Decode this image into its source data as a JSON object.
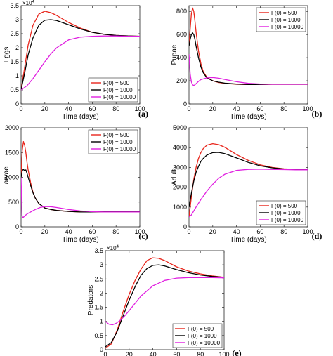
{
  "chart_data": [
    {
      "id": "a",
      "type": "line",
      "panel_label": "(a)",
      "xlabel": "Time (days)",
      "ylabel": "Eggs",
      "multiplier": "×10",
      "multiplier_exp": "4",
      "xlim": [
        0,
        100
      ],
      "ylim": [
        0,
        35000
      ],
      "xticks": [
        0,
        20,
        40,
        60,
        80,
        100
      ],
      "yticks": [
        0,
        5000,
        10000,
        15000,
        20000,
        25000,
        30000,
        35000
      ],
      "ytick_labels": [
        "0",
        "0.5",
        "1",
        "1.5",
        "2",
        "2.5",
        "3",
        "3.5"
      ],
      "legend_position": "bottom-right",
      "series": [
        {
          "name": "F(0) = 500",
          "color": "#e8251b",
          "x": [
            0,
            3,
            6,
            10,
            15,
            20,
            25,
            30,
            40,
            50,
            60,
            70,
            80,
            90,
            100
          ],
          "y": [
            5000,
            13000,
            21000,
            28000,
            32000,
            33000,
            32500,
            31500,
            29000,
            27000,
            25500,
            24800,
            24400,
            24200,
            24100
          ]
        },
        {
          "name": "F(0) = 1000",
          "color": "#000000",
          "x": [
            0,
            3,
            6,
            10,
            15,
            20,
            25,
            30,
            40,
            50,
            60,
            70,
            80,
            90,
            100
          ],
          "y": [
            5000,
            11000,
            17500,
            23500,
            28000,
            29800,
            30000,
            29700,
            28200,
            26700,
            25500,
            24800,
            24400,
            24200,
            24100
          ]
        },
        {
          "name": "F(0) = 10000",
          "color": "#e020e0",
          "x": [
            0,
            5,
            10,
            15,
            20,
            25,
            30,
            40,
            50,
            60,
            70,
            80,
            90,
            100
          ],
          "y": [
            5000,
            6500,
            9000,
            12000,
            15000,
            17800,
            20000,
            22800,
            23800,
            24100,
            24200,
            24200,
            24100,
            24100
          ]
        }
      ]
    },
    {
      "id": "b",
      "type": "line",
      "panel_label": "(b)",
      "xlabel": "Time (days)",
      "ylabel": "Pupae",
      "multiplier": "",
      "multiplier_exp": "",
      "xlim": [
        0,
        100
      ],
      "ylim": [
        0,
        850
      ],
      "xticks": [
        0,
        20,
        40,
        60,
        80,
        100
      ],
      "yticks": [
        0,
        200,
        400,
        600,
        800
      ],
      "ytick_labels": [
        "0",
        "200",
        "400",
        "600",
        "800"
      ],
      "legend_position": "top-right",
      "series": [
        {
          "name": "F(0) = 500",
          "color": "#e8251b",
          "x": [
            0,
            1,
            2,
            3,
            4,
            5,
            6,
            8,
            10,
            12,
            15,
            20,
            25,
            30,
            40,
            50,
            60,
            70,
            80,
            90,
            100
          ],
          "y": [
            500,
            650,
            780,
            830,
            800,
            720,
            620,
            460,
            350,
            280,
            230,
            200,
            185,
            178,
            170,
            168,
            168,
            170,
            170,
            170,
            170
          ]
        },
        {
          "name": "F(0) = 1000",
          "color": "#000000",
          "x": [
            0,
            1,
            2,
            3,
            4,
            5,
            6,
            8,
            10,
            12,
            15,
            20,
            25,
            30,
            40,
            50,
            60,
            70,
            80,
            90,
            100
          ],
          "y": [
            500,
            560,
            600,
            615,
            600,
            560,
            500,
            400,
            320,
            270,
            225,
            200,
            188,
            180,
            172,
            168,
            168,
            170,
            170,
            170,
            170
          ]
        },
        {
          "name": "F(0) = 10000",
          "color": "#e020e0",
          "x": [
            0,
            1,
            2,
            3,
            4,
            5,
            6,
            8,
            10,
            15,
            20,
            25,
            30,
            40,
            50,
            60,
            70,
            80,
            90,
            100
          ],
          "y": [
            430,
            260,
            190,
            165,
            160,
            165,
            175,
            195,
            210,
            225,
            228,
            222,
            212,
            192,
            178,
            172,
            170,
            170,
            170,
            170
          ]
        }
      ]
    },
    {
      "id": "c",
      "type": "line",
      "panel_label": "(c)",
      "xlabel": "Time (days)",
      "ylabel": "Larvae",
      "multiplier": "",
      "multiplier_exp": "",
      "xlim": [
        0,
        100
      ],
      "ylim": [
        0,
        2000
      ],
      "xticks": [
        0,
        20,
        40,
        60,
        80,
        100
      ],
      "yticks": [
        0,
        500,
        1000,
        1500,
        2000
      ],
      "ytick_labels": [
        "0",
        "500",
        "1000",
        "1500",
        "2000"
      ],
      "legend_position": "top-right",
      "series": [
        {
          "name": "F(0) = 500",
          "color": "#e8251b",
          "x": [
            0,
            1,
            2,
            3,
            4,
            5,
            6,
            8,
            10,
            12,
            15,
            20,
            25,
            30,
            40,
            50,
            60,
            70,
            80,
            90,
            100
          ],
          "y": [
            1000,
            1550,
            1720,
            1650,
            1500,
            1300,
            1150,
            900,
            700,
            580,
            470,
            380,
            350,
            330,
            310,
            300,
            300,
            305,
            305,
            305,
            305
          ]
        },
        {
          "name": "F(0) = 1000",
          "color": "#000000",
          "x": [
            0,
            1,
            2,
            3,
            4,
            5,
            6,
            8,
            10,
            12,
            15,
            20,
            25,
            30,
            40,
            50,
            60,
            70,
            80,
            90,
            100
          ],
          "y": [
            1000,
            1140,
            1160,
            1130,
            1150,
            1080,
            1000,
            840,
            690,
            580,
            470,
            380,
            350,
            330,
            310,
            300,
            300,
            305,
            305,
            305,
            305
          ]
        },
        {
          "name": "F(0) = 10000",
          "color": "#e020e0",
          "x": [
            0,
            0.8,
            1.5,
            3,
            5,
            8,
            12,
            16,
            20,
            25,
            30,
            40,
            50,
            60,
            70,
            80,
            90,
            100
          ],
          "y": [
            1000,
            230,
            180,
            220,
            260,
            300,
            350,
            390,
            410,
            405,
            390,
            350,
            320,
            305,
            300,
            300,
            300,
            300
          ]
        }
      ]
    },
    {
      "id": "d",
      "type": "line",
      "panel_label": "(d)",
      "xlabel": "Time (days)",
      "ylabel": "Adult",
      "multiplier": "",
      "multiplier_exp": "",
      "xlim": [
        0,
        100
      ],
      "ylim": [
        0,
        5000
      ],
      "xticks": [
        0,
        20,
        40,
        60,
        80,
        100
      ],
      "yticks": [
        0,
        1000,
        2000,
        3000,
        4000,
        5000
      ],
      "ytick_labels": [
        "0",
        "1000",
        "2000",
        "3000",
        "4000",
        "5000"
      ],
      "legend_position": "bottom-right",
      "series": [
        {
          "name": "F(0) = 500",
          "color": "#e8251b",
          "x": [
            0,
            2,
            4,
            6,
            8,
            10,
            12,
            15,
            20,
            25,
            30,
            40,
            50,
            60,
            70,
            80,
            90,
            100
          ],
          "y": [
            500,
            1500,
            2400,
            3000,
            3450,
            3750,
            3950,
            4120,
            4200,
            4150,
            4020,
            3650,
            3350,
            3130,
            3000,
            2930,
            2900,
            2880
          ]
        },
        {
          "name": "F(0) = 1000",
          "color": "#000000",
          "x": [
            0,
            2,
            4,
            6,
            8,
            10,
            12,
            15,
            20,
            25,
            30,
            40,
            50,
            60,
            70,
            80,
            90,
            100
          ],
          "y": [
            1000,
            1700,
            2300,
            2750,
            3050,
            3300,
            3450,
            3620,
            3750,
            3760,
            3700,
            3480,
            3250,
            3080,
            2980,
            2920,
            2900,
            2880
          ]
        },
        {
          "name": "F(0) = 10000",
          "color": "#e020e0",
          "x": [
            0,
            2,
            4,
            6,
            10,
            15,
            20,
            25,
            30,
            40,
            50,
            60,
            70,
            80,
            90,
            100
          ],
          "y": [
            500,
            600,
            800,
            1000,
            1380,
            1800,
            2150,
            2450,
            2650,
            2850,
            2900,
            2910,
            2900,
            2890,
            2880,
            2880
          ]
        }
      ]
    },
    {
      "id": "e",
      "type": "line",
      "panel_label": "(e)",
      "xlabel": "Time (days)",
      "ylabel": "Predators",
      "multiplier": "×10",
      "multiplier_exp": "4",
      "xlim": [
        0,
        100
      ],
      "ylim": [
        0,
        35000
      ],
      "xticks": [
        0,
        20,
        40,
        60,
        80,
        100
      ],
      "yticks": [
        0,
        5000,
        10000,
        15000,
        20000,
        25000,
        30000,
        35000
      ],
      "ytick_labels": [
        "0",
        "0.5",
        "1",
        "1.5",
        "2",
        "2.5",
        "3",
        "3.5"
      ],
      "legend_position": "bottom-right",
      "series": [
        {
          "name": "F(0) = 500",
          "color": "#e8251b",
          "x": [
            0,
            5,
            10,
            15,
            20,
            25,
            30,
            35,
            40,
            45,
            50,
            60,
            70,
            80,
            90,
            100
          ],
          "y": [
            500,
            2000,
            7000,
            13500,
            19500,
            24500,
            28500,
            31500,
            32500,
            32300,
            31500,
            29300,
            27800,
            26800,
            26100,
            25600
          ]
        },
        {
          "name": "F(0) = 1000",
          "color": "#000000",
          "x": [
            0,
            5,
            10,
            15,
            20,
            25,
            30,
            35,
            40,
            45,
            50,
            60,
            70,
            80,
            90,
            100
          ],
          "y": [
            1000,
            2500,
            6500,
            12000,
            17500,
            22300,
            26300,
            28700,
            29800,
            30000,
            29600,
            28300,
            27200,
            26400,
            25900,
            25600
          ]
        },
        {
          "name": "F(0) = 10000",
          "color": "#e020e0",
          "x": [
            0,
            3,
            6,
            9,
            12,
            16,
            20,
            25,
            30,
            40,
            50,
            60,
            70,
            80,
            90,
            100
          ],
          "y": [
            10000,
            9000,
            8800,
            9300,
            10200,
            11800,
            13800,
            16400,
            19000,
            22600,
            24500,
            25300,
            25500,
            25500,
            25500,
            25400
          ]
        }
      ]
    }
  ]
}
